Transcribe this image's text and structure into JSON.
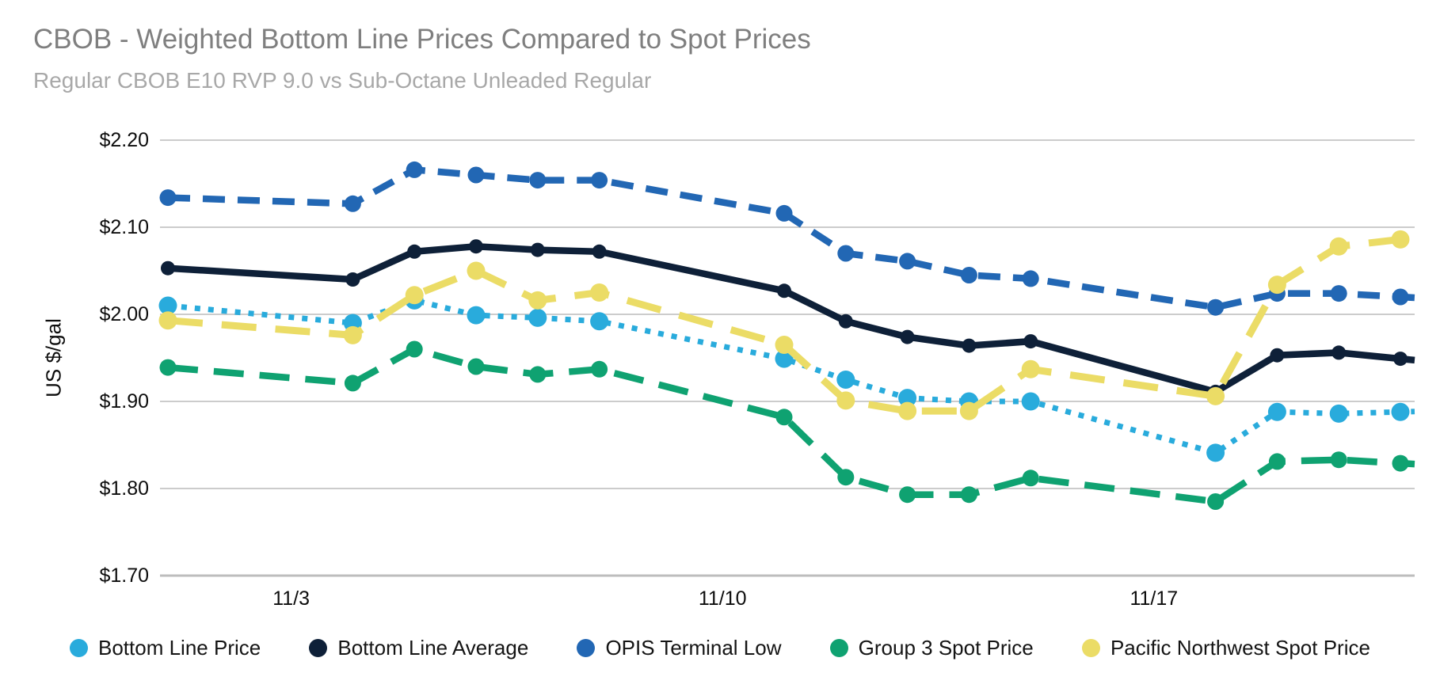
{
  "header": {
    "title": "CBOB - Weighted Bottom Line Prices Compared to Spot Prices",
    "subtitle": "Regular CBOB E10 RVP 9.0 vs Sub-Octane Unleaded Regular"
  },
  "chart_data": {
    "type": "line",
    "title": "CBOB - Weighted Bottom Line Prices Compared to Spot Prices",
    "subtitle": "Regular CBOB E10 RVP 9.0 vs Sub-Octane Unleaded Regular",
    "ylabel": "US $/gal",
    "ylim": [
      1.7,
      2.2
    ],
    "grid": true,
    "legend_position": "bottom",
    "y_ticks": [
      "$2.20",
      "$2.10",
      "$2.00",
      "$1.90",
      "$1.80",
      "$1.70"
    ],
    "x_tick_labels": [
      "11/3",
      "11/10",
      "11/17"
    ],
    "x": [
      "11/1",
      "11/4",
      "11/5",
      "11/6",
      "11/7",
      "11/8",
      "11/11",
      "11/12",
      "11/13",
      "11/14",
      "11/15",
      "11/18",
      "11/19",
      "11/20",
      "11/21"
    ],
    "series": [
      {
        "name": "Bottom Line Price",
        "color": "#29abdc",
        "line_style": "dotted",
        "values": [
          2.01,
          1.99,
          2.016,
          1.999,
          1.996,
          1.992,
          1.949,
          1.925,
          1.904,
          1.9,
          1.9,
          1.841,
          1.888,
          1.886,
          1.888
        ]
      },
      {
        "name": "Bottom Line Average",
        "color": "#0e2038",
        "line_style": "solid",
        "values": [
          2.053,
          2.04,
          2.072,
          2.078,
          2.074,
          2.072,
          2.027,
          1.992,
          1.974,
          1.964,
          1.969,
          1.911,
          1.953,
          1.956,
          1.949
        ]
      },
      {
        "name": "OPIS Terminal Low",
        "color": "#2267b4",
        "line_style": "dashed",
        "values": [
          2.134,
          2.127,
          2.166,
          2.16,
          2.154,
          2.154,
          2.116,
          2.07,
          2.061,
          2.045,
          2.041,
          2.008,
          2.024,
          2.024,
          2.02
        ]
      },
      {
        "name": "Group 3 Spot Price",
        "color": "#0fa271",
        "line_style": "long-dash",
        "values": [
          1.939,
          1.921,
          1.96,
          1.94,
          1.931,
          1.937,
          1.882,
          1.813,
          1.793,
          1.793,
          1.812,
          1.785,
          1.831,
          1.833,
          1.829
        ]
      },
      {
        "name": "Pacific Northwest Spot Price",
        "color": "#ebdc66",
        "line_style": "long-dash-wide",
        "values": [
          1.993,
          1.976,
          2.022,
          2.05,
          2.016,
          2.025,
          1.965,
          1.901,
          1.889,
          1.889,
          1.937,
          1.906,
          2.034,
          2.078,
          2.086
        ]
      }
    ]
  }
}
